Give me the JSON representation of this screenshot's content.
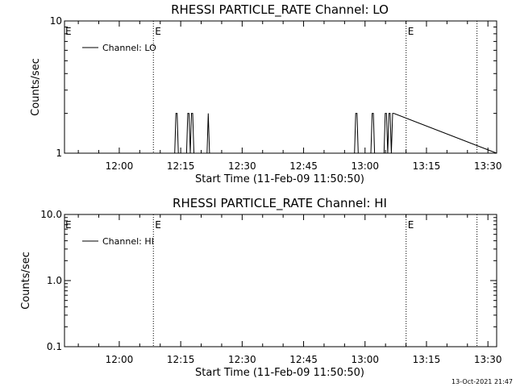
{
  "chart_data": [
    {
      "type": "line",
      "title": "RHESSI PARTICLE_RATE Channel: LO",
      "xlabel": "Start Time (11-Feb-09 11:50:50)",
      "ylabel": "Counts/sec",
      "yscale": "log",
      "ylim": [
        1,
        10
      ],
      "yticks": [
        {
          "v": 1,
          "label": "1"
        },
        {
          "v": 10,
          "label": "10"
        }
      ],
      "xlim_min": [
        -4.2,
        101.3
      ],
      "xticks": [
        {
          "v": 9.17,
          "label": "12:00"
        },
        {
          "v": 24.17,
          "label": "12:15"
        },
        {
          "v": 39.17,
          "label": "12:30"
        },
        {
          "v": 54.17,
          "label": "12:45"
        },
        {
          "v": 69.17,
          "label": "13:00"
        },
        {
          "v": 84.17,
          "label": "13:15"
        },
        {
          "v": 99.17,
          "label": "13:30"
        }
      ],
      "vlines": [
        {
          "v": 17.5,
          "label": "E"
        },
        {
          "v": 79.2,
          "label": "E"
        },
        {
          "v": 96.5,
          "label": ""
        }
      ],
      "edge_label": "E",
      "grid": false,
      "legend_position": "top-left",
      "series": [
        {
          "name": "Channel: LO",
          "x": [
            0,
            22.7,
            23.0,
            23.3,
            23.6,
            25.6,
            25.9,
            26.2,
            26.5,
            26.8,
            27.1,
            27.4,
            30.6,
            30.9,
            31.2,
            66.6,
            66.9,
            67.2,
            67.5,
            70.6,
            70.9,
            71.2,
            71.5,
            73.8,
            74.1,
            74.4,
            74.7,
            75.0,
            75.3,
            75.6,
            75.9,
            76.2,
            101.3
          ],
          "y": [
            1,
            1,
            2,
            2,
            1,
            1,
            2,
            2,
            1,
            2,
            2,
            1,
            1,
            2,
            1,
            1,
            2,
            2,
            1,
            1,
            2,
            2,
            1,
            1,
            2,
            2,
            1,
            2,
            2,
            1,
            2,
            2,
            1
          ]
        }
      ]
    },
    {
      "type": "line",
      "title": "RHESSI PARTICLE_RATE Channel: HI",
      "xlabel": "Start Time (11-Feb-09 11:50:50)",
      "ylabel": "Counts/sec",
      "yscale": "log",
      "ylim": [
        0.1,
        10
      ],
      "yticks": [
        {
          "v": 0.1,
          "label": "0.1"
        },
        {
          "v": 1,
          "label": "1.0"
        },
        {
          "v": 10,
          "label": "10.0"
        }
      ],
      "xlim_min": [
        -4.2,
        101.3
      ],
      "xticks": [
        {
          "v": 9.17,
          "label": "12:00"
        },
        {
          "v": 24.17,
          "label": "12:15"
        },
        {
          "v": 39.17,
          "label": "12:30"
        },
        {
          "v": 54.17,
          "label": "12:45"
        },
        {
          "v": 69.17,
          "label": "13:00"
        },
        {
          "v": 84.17,
          "label": "13:15"
        },
        {
          "v": 99.17,
          "label": "13:30"
        }
      ],
      "vlines": [
        {
          "v": 17.5,
          "label": "E"
        },
        {
          "v": 79.2,
          "label": "E"
        },
        {
          "v": 96.5,
          "label": ""
        }
      ],
      "edge_label": "E",
      "grid": false,
      "legend_position": "top-left",
      "series": [
        {
          "name": "Channel: HI",
          "x": [],
          "y": []
        }
      ]
    }
  ],
  "timestamp": "13-Oct-2021 21:47"
}
